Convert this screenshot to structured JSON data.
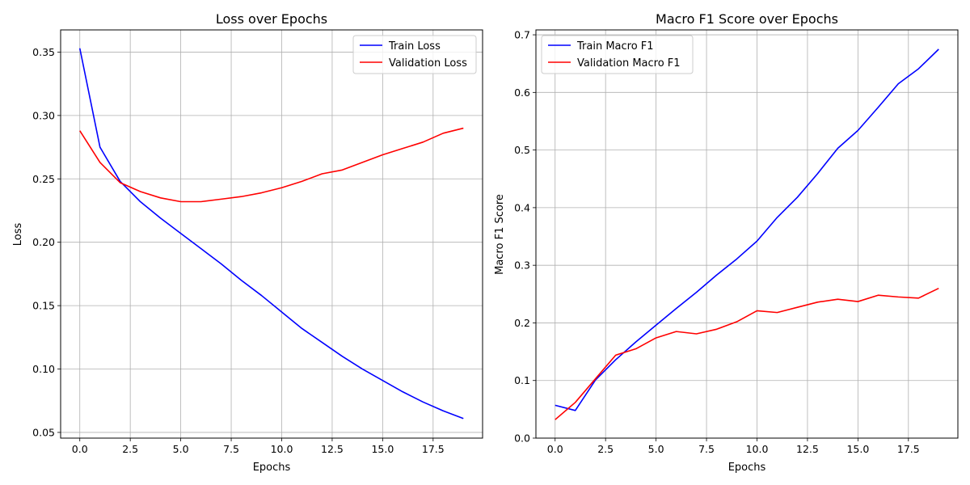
{
  "chart_data": [
    {
      "type": "line",
      "title": "Loss over Epochs",
      "xlabel": "Epochs",
      "ylabel": "Loss",
      "xlim": [
        -0.95,
        19.95
      ],
      "ylim": [
        0.0455,
        0.3675
      ],
      "xticks": [
        0.0,
        2.5,
        5.0,
        7.5,
        10.0,
        12.5,
        15.0,
        17.5
      ],
      "xtick_labels": [
        "0.0",
        "2.5",
        "5.0",
        "7.5",
        "10.0",
        "12.5",
        "15.0",
        "17.5"
      ],
      "yticks": [
        0.05,
        0.1,
        0.15,
        0.2,
        0.25,
        0.3,
        0.35
      ],
      "ytick_labels": [
        "0.05",
        "0.10",
        "0.15",
        "0.20",
        "0.25",
        "0.30",
        "0.35"
      ],
      "grid": true,
      "legend_position": "top-right",
      "x": [
        0,
        1,
        2,
        3,
        4,
        5,
        6,
        7,
        8,
        9,
        10,
        11,
        12,
        13,
        14,
        15,
        16,
        17,
        18,
        19
      ],
      "series": [
        {
          "name": "Train Loss",
          "color": "#0000ff",
          "values": [
            0.353,
            0.275,
            0.248,
            0.232,
            0.219,
            0.207,
            0.195,
            0.183,
            0.17,
            0.158,
            0.145,
            0.132,
            0.121,
            0.11,
            0.1,
            0.091,
            0.082,
            0.074,
            0.067,
            0.061
          ]
        },
        {
          "name": "Validation Loss",
          "color": "#ff0000",
          "values": [
            0.288,
            0.263,
            0.247,
            0.24,
            0.235,
            0.232,
            0.232,
            0.234,
            0.236,
            0.239,
            0.243,
            0.248,
            0.254,
            0.257,
            0.263,
            0.269,
            0.274,
            0.279,
            0.286,
            0.29
          ]
        }
      ]
    },
    {
      "type": "line",
      "title": "Macro F1 Score over Epochs",
      "xlabel": "Epochs",
      "ylabel": "Macro F1 Score",
      "xlim": [
        -0.95,
        19.95
      ],
      "ylim": [
        0.0,
        0.7085
      ],
      "xticks": [
        0.0,
        2.5,
        5.0,
        7.5,
        10.0,
        12.5,
        15.0,
        17.5
      ],
      "xtick_labels": [
        "0.0",
        "2.5",
        "5.0",
        "7.5",
        "10.0",
        "12.5",
        "15.0",
        "17.5"
      ],
      "yticks": [
        0.0,
        0.1,
        0.2,
        0.3,
        0.4,
        0.5,
        0.6,
        0.7
      ],
      "ytick_labels": [
        "0.0",
        "0.1",
        "0.2",
        "0.3",
        "0.4",
        "0.5",
        "0.6",
        "0.7"
      ],
      "grid": true,
      "legend_position": "top-left",
      "x": [
        0,
        1,
        2,
        3,
        4,
        5,
        6,
        7,
        8,
        9,
        10,
        11,
        12,
        13,
        14,
        15,
        16,
        17,
        18,
        19
      ],
      "series": [
        {
          "name": "Train Macro F1",
          "color": "#0000ff",
          "values": [
            0.057,
            0.048,
            0.101,
            0.136,
            0.167,
            0.196,
            0.225,
            0.253,
            0.283,
            0.311,
            0.342,
            0.383,
            0.418,
            0.459,
            0.503,
            0.534,
            0.574,
            0.615,
            0.641,
            0.675
          ]
        },
        {
          "name": "Validation Macro F1",
          "color": "#ff0000",
          "values": [
            0.032,
            0.062,
            0.103,
            0.144,
            0.155,
            0.174,
            0.185,
            0.181,
            0.189,
            0.202,
            0.221,
            0.218,
            0.227,
            0.236,
            0.241,
            0.237,
            0.248,
            0.245,
            0.243,
            0.26
          ]
        }
      ]
    }
  ]
}
